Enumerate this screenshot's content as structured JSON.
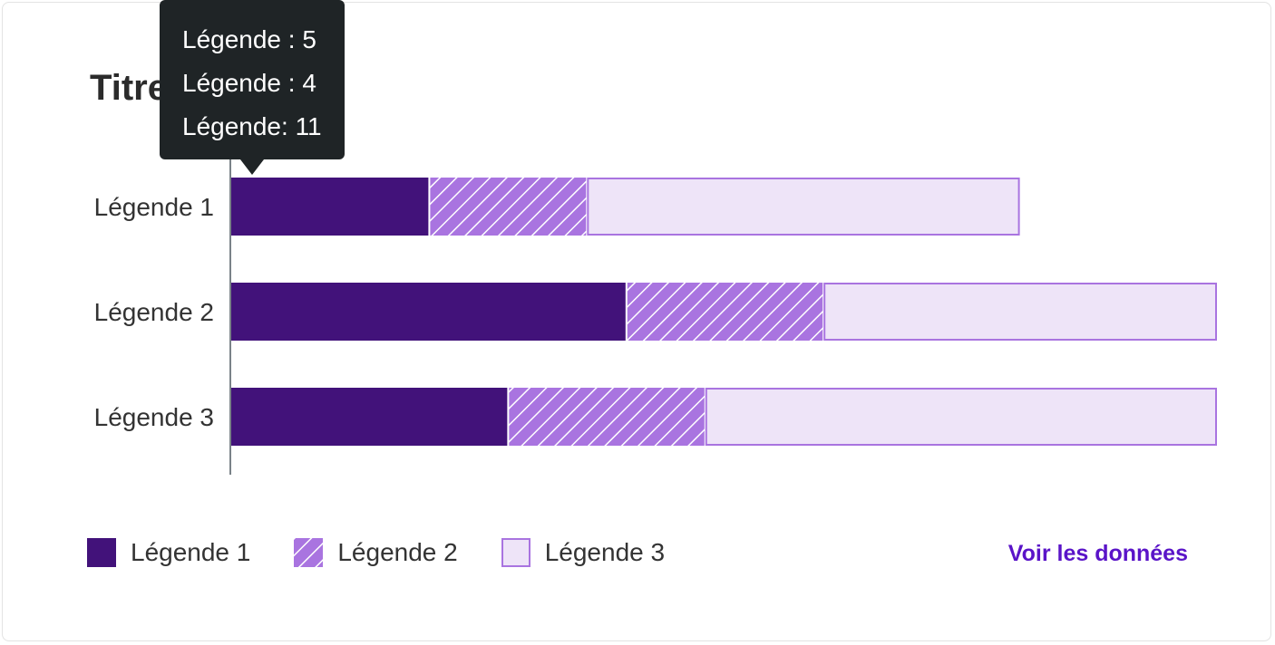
{
  "chart_data": {
    "type": "bar",
    "orientation": "horizontal",
    "stacked": true,
    "title": "Titre",
    "categories": [
      "Légende 1",
      "Légende 2",
      "Légende 3"
    ],
    "series": [
      {
        "name": "Légende 1",
        "values": [
          5,
          10,
          7
        ],
        "color": "#42127a",
        "pattern": "solid"
      },
      {
        "name": "Légende 2",
        "values": [
          4,
          5,
          5
        ],
        "color": "#a974e0",
        "pattern": "hatched"
      },
      {
        "name": "Légende 3",
        "values": [
          11,
          10,
          13
        ],
        "color": "#eee4f8",
        "border": "#a974e0",
        "pattern": "light"
      }
    ],
    "xlim": [
      0,
      25
    ],
    "grid": false,
    "legend_position": "bottom-left"
  },
  "tooltip": {
    "lines": [
      "Légende : 5",
      "Légende : 4",
      "Légende: 11"
    ]
  },
  "link": {
    "label": "Voir les données"
  }
}
